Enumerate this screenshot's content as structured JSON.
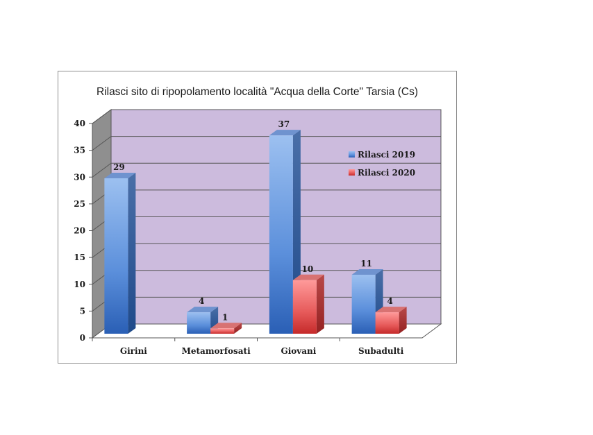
{
  "chart_data": {
    "type": "bar",
    "title": "Rilasci sito di ripopolamento località \"Acqua della Corte\" Tarsia (Cs)",
    "categories": [
      "Girini",
      "Metamorfosati",
      "Giovani",
      "Subadulti"
    ],
    "series": [
      {
        "name": "Rilasci 2019",
        "values": [
          29,
          4,
          37,
          11
        ],
        "color": "#5a8fd8"
      },
      {
        "name": "Rilasci 2020",
        "values": [
          null,
          1,
          10,
          4
        ],
        "color": "#e85a5a"
      }
    ],
    "ylim": [
      0,
      40
    ],
    "yticks": [
      0,
      5,
      10,
      15,
      20,
      25,
      30,
      35,
      40
    ],
    "grid": true,
    "legend": "right",
    "wall_color": "#ccbbdd",
    "style": "3d-clustered-column"
  }
}
